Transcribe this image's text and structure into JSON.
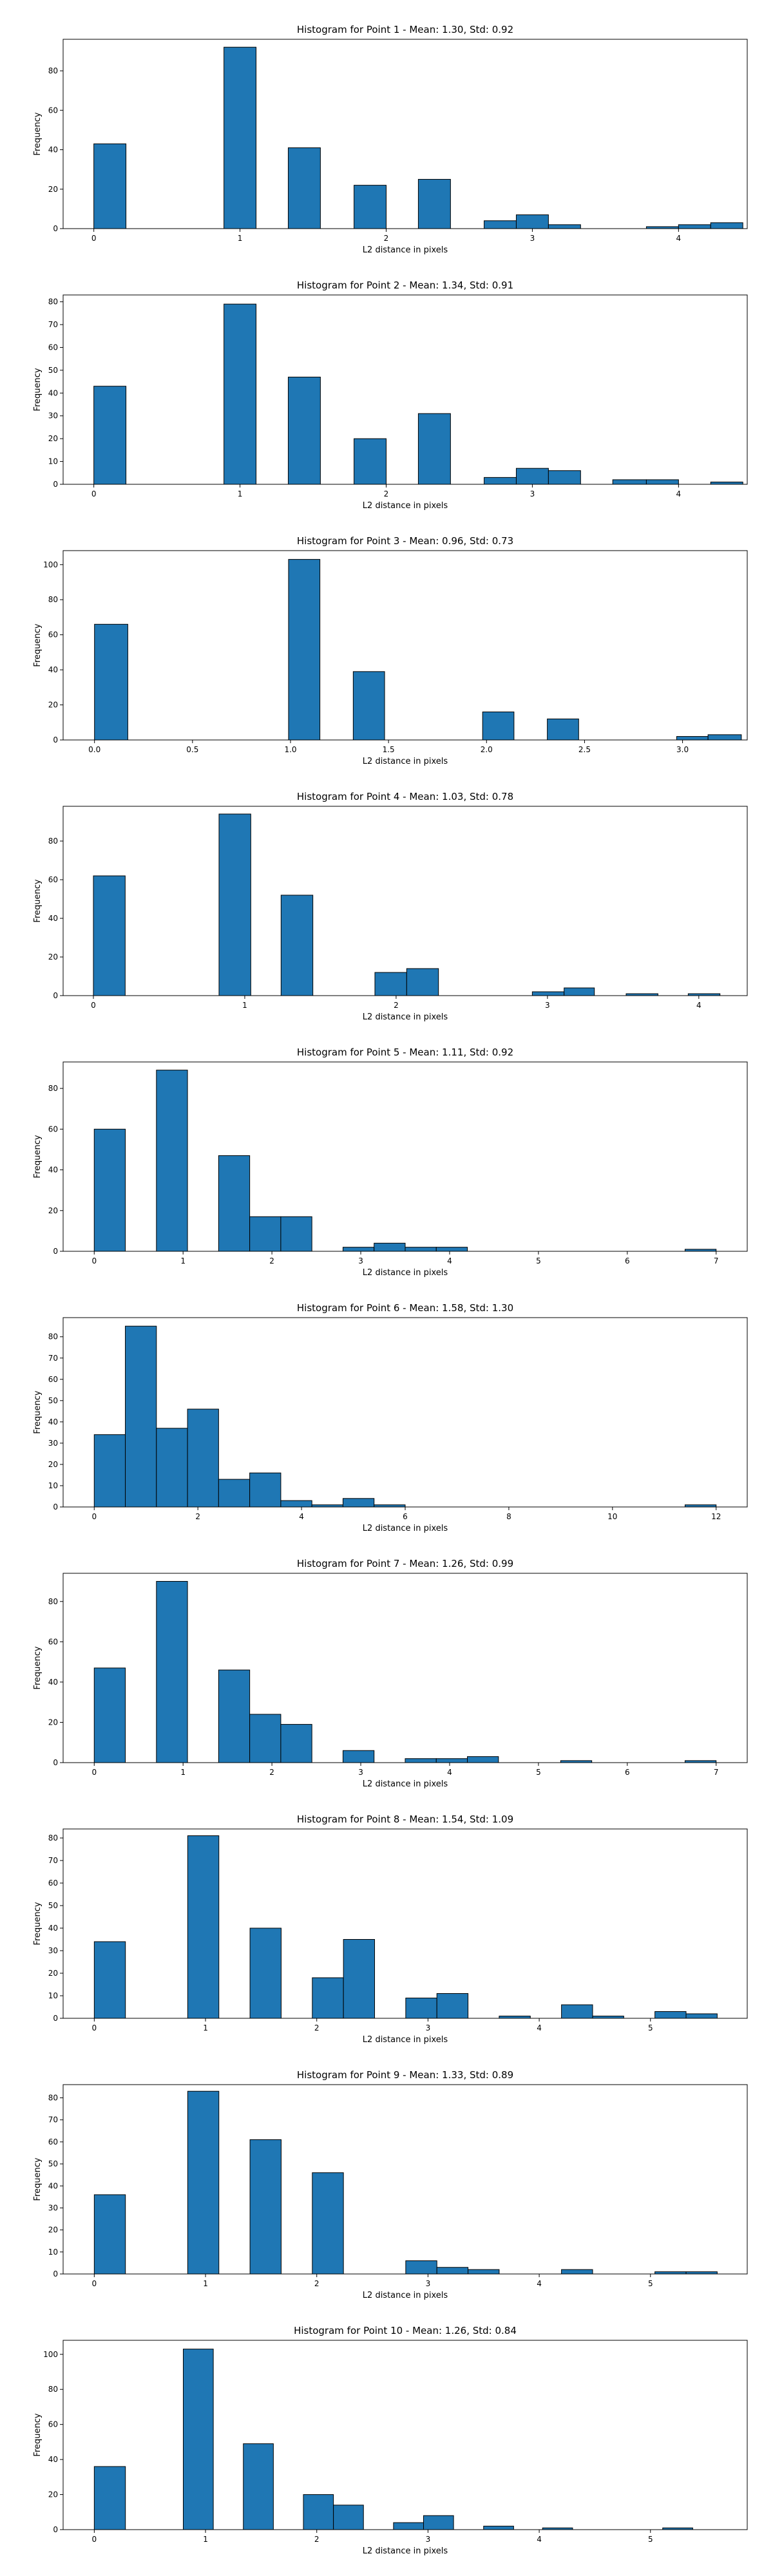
{
  "figure": {
    "bar_color": "#1f77b4",
    "edge_color": "#000000"
  },
  "chart_data": [
    {
      "type": "bar",
      "title": "Histogram for Point 1 - Mean: 1.30, Std: 0.92",
      "xlabel": "L2 distance in pixels",
      "ylabel": "Frequency",
      "xlim": [
        -0.21,
        4.47
      ],
      "ylim": [
        0,
        96
      ],
      "xticks": [
        0,
        1,
        2,
        3,
        4
      ],
      "xtick_labels": [
        "0",
        "1",
        "2",
        "3",
        "4"
      ],
      "yticks": [
        0,
        20,
        40,
        60,
        80
      ],
      "ytick_labels": [
        "0",
        "20",
        "40",
        "60",
        "80"
      ],
      "bars": [
        {
          "x0": 0.0,
          "x1": 0.22,
          "value": 43
        },
        {
          "x0": 0.89,
          "x1": 1.11,
          "value": 92
        },
        {
          "x0": 1.33,
          "x1": 1.55,
          "value": 41
        },
        {
          "x0": 1.78,
          "x1": 2.0,
          "value": 22
        },
        {
          "x0": 2.22,
          "x1": 2.44,
          "value": 25
        },
        {
          "x0": 2.67,
          "x1": 2.89,
          "value": 4
        },
        {
          "x0": 2.89,
          "x1": 3.11,
          "value": 7
        },
        {
          "x0": 3.11,
          "x1": 3.33,
          "value": 2
        },
        {
          "x0": 3.78,
          "x1": 4.0,
          "value": 1
        },
        {
          "x0": 4.0,
          "x1": 4.22,
          "value": 2
        },
        {
          "x0": 4.22,
          "x1": 4.44,
          "value": 3
        }
      ]
    },
    {
      "type": "bar",
      "title": "Histogram for Point 2 - Mean: 1.34, Std: 0.91",
      "xlabel": "L2 distance in pixels",
      "ylabel": "Frequency",
      "xlim": [
        -0.21,
        4.47
      ],
      "ylim": [
        0,
        83
      ],
      "xticks": [
        0,
        1,
        2,
        3,
        4
      ],
      "xtick_labels": [
        "0",
        "1",
        "2",
        "3",
        "4"
      ],
      "yticks": [
        0,
        10,
        20,
        30,
        40,
        50,
        60,
        70,
        80
      ],
      "ytick_labels": [
        "0",
        "10",
        "20",
        "30",
        "40",
        "50",
        "60",
        "70",
        "80"
      ],
      "bars": [
        {
          "x0": 0.0,
          "x1": 0.22,
          "value": 43
        },
        {
          "x0": 0.89,
          "x1": 1.11,
          "value": 79
        },
        {
          "x0": 1.33,
          "x1": 1.55,
          "value": 47
        },
        {
          "x0": 1.78,
          "x1": 2.0,
          "value": 20
        },
        {
          "x0": 2.22,
          "x1": 2.44,
          "value": 31
        },
        {
          "x0": 2.67,
          "x1": 2.89,
          "value": 3
        },
        {
          "x0": 2.89,
          "x1": 3.11,
          "value": 7
        },
        {
          "x0": 3.11,
          "x1": 3.33,
          "value": 6
        },
        {
          "x0": 3.55,
          "x1": 3.78,
          "value": 2
        },
        {
          "x0": 3.78,
          "x1": 4.0,
          "value": 2
        },
        {
          "x0": 4.22,
          "x1": 4.44,
          "value": 1
        }
      ]
    },
    {
      "type": "bar",
      "title": "Histogram for Point 3 - Mean: 0.96, Std: 0.73",
      "xlabel": "L2 distance in pixels",
      "ylabel": "Frequency",
      "xlim": [
        -0.16,
        3.33
      ],
      "ylim": [
        0,
        108
      ],
      "xticks": [
        0,
        0.5,
        1,
        1.5,
        2,
        2.5,
        3
      ],
      "xtick_labels": [
        "0.0",
        "0.5",
        "1.0",
        "1.5",
        "2.0",
        "2.5",
        "3.0"
      ],
      "yticks": [
        0,
        20,
        40,
        60,
        80,
        100
      ],
      "ytick_labels": [
        "0",
        "20",
        "40",
        "60",
        "80",
        "100"
      ],
      "bars": [
        {
          "x0": 0.0,
          "x1": 0.17,
          "value": 66
        },
        {
          "x0": 0.99,
          "x1": 1.15,
          "value": 103
        },
        {
          "x0": 1.32,
          "x1": 1.48,
          "value": 39
        },
        {
          "x0": 1.98,
          "x1": 2.14,
          "value": 16
        },
        {
          "x0": 2.31,
          "x1": 2.47,
          "value": 12
        },
        {
          "x0": 2.97,
          "x1": 3.13,
          "value": 2
        },
        {
          "x0": 3.13,
          "x1": 3.3,
          "value": 3
        }
      ]
    },
    {
      "type": "bar",
      "title": "Histogram for Point 4 - Mean: 1.03, Std: 0.78",
      "xlabel": "L2 distance in pixels",
      "ylabel": "Frequency",
      "xlim": [
        -0.2,
        4.32
      ],
      "ylim": [
        0,
        98
      ],
      "xticks": [
        0,
        1,
        2,
        3,
        4
      ],
      "xtick_labels": [
        "0",
        "1",
        "2",
        "3",
        "4"
      ],
      "yticks": [
        0,
        20,
        40,
        60,
        80
      ],
      "ytick_labels": [
        "0",
        "20",
        "40",
        "60",
        "80"
      ],
      "bars": [
        {
          "x0": 0.0,
          "x1": 0.21,
          "value": 62
        },
        {
          "x0": 0.83,
          "x1": 1.04,
          "value": 94
        },
        {
          "x0": 1.24,
          "x1": 1.45,
          "value": 52
        },
        {
          "x0": 1.86,
          "x1": 2.07,
          "value": 12
        },
        {
          "x0": 2.07,
          "x1": 2.28,
          "value": 14
        },
        {
          "x0": 2.9,
          "x1": 3.11,
          "value": 2
        },
        {
          "x0": 3.11,
          "x1": 3.31,
          "value": 4
        },
        {
          "x0": 3.52,
          "x1": 3.73,
          "value": 1
        },
        {
          "x0": 3.93,
          "x1": 4.14,
          "value": 1
        }
      ]
    },
    {
      "type": "bar",
      "title": "Histogram for Point 5 - Mean: 1.11, Std: 0.92",
      "xlabel": "L2 distance in pixels",
      "ylabel": "Frequency",
      "xlim": [
        -0.35,
        7.35
      ],
      "ylim": [
        0,
        93
      ],
      "xticks": [
        0,
        1,
        2,
        3,
        4,
        5,
        6,
        7
      ],
      "xtick_labels": [
        "0",
        "1",
        "2",
        "3",
        "4",
        "5",
        "6",
        "7"
      ],
      "yticks": [
        0,
        20,
        40,
        60,
        80
      ],
      "ytick_labels": [
        "0",
        "20",
        "40",
        "60",
        "80"
      ],
      "bars": [
        {
          "x0": 0.0,
          "x1": 0.35,
          "value": 60
        },
        {
          "x0": 0.7,
          "x1": 1.05,
          "value": 89
        },
        {
          "x0": 1.4,
          "x1": 1.75,
          "value": 47
        },
        {
          "x0": 1.75,
          "x1": 2.1,
          "value": 17
        },
        {
          "x0": 2.1,
          "x1": 2.45,
          "value": 17
        },
        {
          "x0": 2.8,
          "x1": 3.15,
          "value": 2
        },
        {
          "x0": 3.15,
          "x1": 3.5,
          "value": 4
        },
        {
          "x0": 3.5,
          "x1": 3.85,
          "value": 2
        },
        {
          "x0": 3.85,
          "x1": 4.2,
          "value": 2
        },
        {
          "x0": 6.65,
          "x1": 7.0,
          "value": 1
        }
      ]
    },
    {
      "type": "bar",
      "title": "Histogram for Point 6 - Mean: 1.58, Std: 1.30",
      "xlabel": "L2 distance in pixels",
      "ylabel": "Frequency",
      "xlim": [
        -0.6,
        12.6
      ],
      "ylim": [
        0,
        89
      ],
      "xticks": [
        0,
        2,
        4,
        6,
        8,
        10,
        12
      ],
      "xtick_labels": [
        "0",
        "2",
        "4",
        "6",
        "8",
        "10",
        "12"
      ],
      "yticks": [
        0,
        10,
        20,
        30,
        40,
        50,
        60,
        70,
        80
      ],
      "ytick_labels": [
        "0",
        "10",
        "20",
        "30",
        "40",
        "50",
        "60",
        "70",
        "80"
      ],
      "bars": [
        {
          "x0": 0.0,
          "x1": 0.6,
          "value": 34
        },
        {
          "x0": 0.6,
          "x1": 1.2,
          "value": 85
        },
        {
          "x0": 1.2,
          "x1": 1.8,
          "value": 37
        },
        {
          "x0": 1.8,
          "x1": 2.4,
          "value": 46
        },
        {
          "x0": 2.4,
          "x1": 3.0,
          "value": 13
        },
        {
          "x0": 3.0,
          "x1": 3.6,
          "value": 16
        },
        {
          "x0": 3.6,
          "x1": 4.2,
          "value": 3
        },
        {
          "x0": 4.2,
          "x1": 4.8,
          "value": 1
        },
        {
          "x0": 4.8,
          "x1": 5.4,
          "value": 4
        },
        {
          "x0": 5.4,
          "x1": 6.0,
          "value": 1
        },
        {
          "x0": 11.4,
          "x1": 12.0,
          "value": 1
        }
      ]
    },
    {
      "type": "bar",
      "title": "Histogram for Point 7 - Mean: 1.26, Std: 0.99",
      "xlabel": "L2 distance in pixels",
      "ylabel": "Frequency",
      "xlim": [
        -0.35,
        7.35
      ],
      "ylim": [
        0,
        94
      ],
      "xticks": [
        0,
        1,
        2,
        3,
        4,
        5,
        6,
        7
      ],
      "xtick_labels": [
        "0",
        "1",
        "2",
        "3",
        "4",
        "5",
        "6",
        "7"
      ],
      "yticks": [
        0,
        20,
        40,
        60,
        80
      ],
      "ytick_labels": [
        "0",
        "20",
        "40",
        "60",
        "80"
      ],
      "bars": [
        {
          "x0": 0.0,
          "x1": 0.35,
          "value": 47
        },
        {
          "x0": 0.7,
          "x1": 1.05,
          "value": 90
        },
        {
          "x0": 1.4,
          "x1": 1.75,
          "value": 46
        },
        {
          "x0": 1.75,
          "x1": 2.1,
          "value": 24
        },
        {
          "x0": 2.1,
          "x1": 2.45,
          "value": 19
        },
        {
          "x0": 2.8,
          "x1": 3.15,
          "value": 6
        },
        {
          "x0": 3.5,
          "x1": 3.85,
          "value": 2
        },
        {
          "x0": 3.85,
          "x1": 4.2,
          "value": 2
        },
        {
          "x0": 4.2,
          "x1": 4.55,
          "value": 3
        },
        {
          "x0": 5.25,
          "x1": 5.6,
          "value": 1
        },
        {
          "x0": 6.65,
          "x1": 7.0,
          "value": 1
        }
      ]
    },
    {
      "type": "bar",
      "title": "Histogram for Point 8 - Mean: 1.54, Std: 1.09",
      "xlabel": "L2 distance in pixels",
      "ylabel": "Frequency",
      "xlim": [
        -0.28,
        5.87
      ],
      "ylim": [
        0,
        84
      ],
      "xticks": [
        0,
        1,
        2,
        3,
        4,
        5
      ],
      "xtick_labels": [
        "0",
        "1",
        "2",
        "3",
        "4",
        "5"
      ],
      "yticks": [
        0,
        10,
        20,
        30,
        40,
        50,
        60,
        70,
        80
      ],
      "ytick_labels": [
        "0",
        "10",
        "20",
        "30",
        "40",
        "50",
        "60",
        "70",
        "80"
      ],
      "bars": [
        {
          "x0": 0.0,
          "x1": 0.28,
          "value": 34
        },
        {
          "x0": 0.84,
          "x1": 1.12,
          "value": 81
        },
        {
          "x0": 1.4,
          "x1": 1.68,
          "value": 40
        },
        {
          "x0": 1.96,
          "x1": 2.24,
          "value": 18
        },
        {
          "x0": 2.24,
          "x1": 2.52,
          "value": 35
        },
        {
          "x0": 2.8,
          "x1": 3.08,
          "value": 9
        },
        {
          "x0": 3.08,
          "x1": 3.36,
          "value": 11
        },
        {
          "x0": 3.64,
          "x1": 3.92,
          "value": 1
        },
        {
          "x0": 4.2,
          "x1": 4.48,
          "value": 6
        },
        {
          "x0": 4.48,
          "x1": 4.76,
          "value": 1
        },
        {
          "x0": 5.04,
          "x1": 5.32,
          "value": 3
        },
        {
          "x0": 5.32,
          "x1": 5.6,
          "value": 2
        }
      ]
    },
    {
      "type": "bar",
      "title": "Histogram for Point 9 - Mean: 1.33, Std: 0.89",
      "xlabel": "L2 distance in pixels",
      "ylabel": "Frequency",
      "xlim": [
        -0.28,
        5.87
      ],
      "ylim": [
        0,
        86
      ],
      "xticks": [
        0,
        1,
        2,
        3,
        4,
        5
      ],
      "xtick_labels": [
        "0",
        "1",
        "2",
        "3",
        "4",
        "5"
      ],
      "yticks": [
        0,
        10,
        20,
        30,
        40,
        50,
        60,
        70,
        80
      ],
      "ytick_labels": [
        "0",
        "10",
        "20",
        "30",
        "40",
        "50",
        "60",
        "70",
        "80"
      ],
      "bars": [
        {
          "x0": 0.0,
          "x1": 0.28,
          "value": 36
        },
        {
          "x0": 0.84,
          "x1": 1.12,
          "value": 83
        },
        {
          "x0": 1.4,
          "x1": 1.68,
          "value": 61
        },
        {
          "x0": 1.96,
          "x1": 2.24,
          "value": 46
        },
        {
          "x0": 2.8,
          "x1": 3.08,
          "value": 6
        },
        {
          "x0": 3.08,
          "x1": 3.36,
          "value": 3
        },
        {
          "x0": 3.36,
          "x1": 3.64,
          "value": 2
        },
        {
          "x0": 4.2,
          "x1": 4.48,
          "value": 2
        },
        {
          "x0": 5.04,
          "x1": 5.32,
          "value": 1
        },
        {
          "x0": 5.32,
          "x1": 5.6,
          "value": 1
        }
      ]
    },
    {
      "type": "bar",
      "title": "Histogram for Point 10 - Mean: 1.26, Std: 0.84",
      "xlabel": "L2 distance in pixels",
      "ylabel": "Frequency",
      "xlim": [
        -0.28,
        5.87
      ],
      "ylim": [
        0,
        108
      ],
      "xticks": [
        0,
        1,
        2,
        3,
        4,
        5
      ],
      "xtick_labels": [
        "0",
        "1",
        "2",
        "3",
        "4",
        "5"
      ],
      "yticks": [
        0,
        20,
        40,
        60,
        80,
        100
      ],
      "ytick_labels": [
        "0",
        "20",
        "40",
        "60",
        "80",
        "100"
      ],
      "bars": [
        {
          "x0": 0.0,
          "x1": 0.28,
          "value": 36
        },
        {
          "x0": 0.8,
          "x1": 1.07,
          "value": 103
        },
        {
          "x0": 1.34,
          "x1": 1.61,
          "value": 49
        },
        {
          "x0": 1.88,
          "x1": 2.15,
          "value": 20
        },
        {
          "x0": 2.15,
          "x1": 2.42,
          "value": 14
        },
        {
          "x0": 2.69,
          "x1": 2.96,
          "value": 4
        },
        {
          "x0": 2.96,
          "x1": 3.23,
          "value": 8
        },
        {
          "x0": 3.5,
          "x1": 3.77,
          "value": 2
        },
        {
          "x0": 4.03,
          "x1": 4.3,
          "value": 1
        },
        {
          "x0": 5.11,
          "x1": 5.38,
          "value": 1
        }
      ]
    }
  ]
}
